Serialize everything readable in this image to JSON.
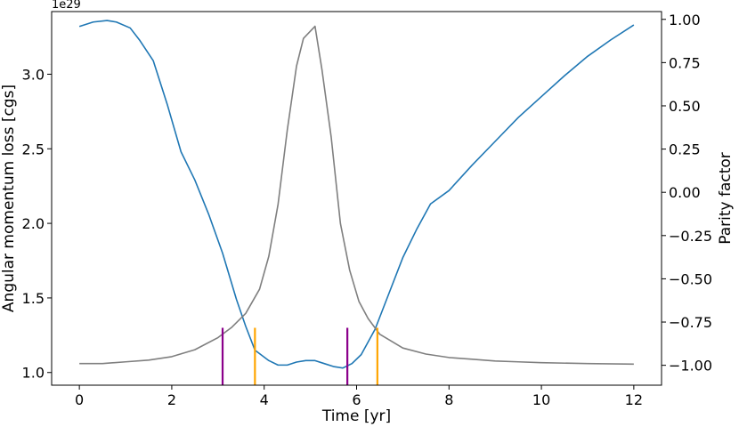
{
  "chart_data": {
    "type": "line",
    "title": "",
    "xlabel": "Time [yr]",
    "ylabel_left": "Angular momentum loss [cgs]",
    "ylabel_right": "Parity factor",
    "y_left_offset_text": "1e29",
    "xlim": [
      -0.6,
      12.6
    ],
    "ylim_left": [
      0.915,
      3.42
    ],
    "ylim_right": [
      -1.115,
      1.045
    ],
    "x_ticks": [
      0,
      2,
      4,
      6,
      8,
      10,
      12
    ],
    "x_tick_labels": [
      "0",
      "2",
      "4",
      "6",
      "8",
      "10",
      "12"
    ],
    "y_left_ticks": [
      1.0,
      1.5,
      2.0,
      2.5,
      3.0
    ],
    "y_left_tick_labels": [
      "1.0",
      "1.5",
      "2.0",
      "2.5",
      "3.0"
    ],
    "y_right_ticks": [
      -1.0,
      -0.75,
      -0.5,
      -0.25,
      0.0,
      0.25,
      0.5,
      0.75,
      1.0
    ],
    "y_right_tick_labels": [
      "−1.00",
      "−0.75",
      "−0.50",
      "−0.25",
      "0.00",
      "0.25",
      "0.50",
      "0.75",
      "1.00"
    ],
    "grid": false,
    "series": [
      {
        "axis": "left",
        "color": "#1f77b4",
        "x": [
          0,
          0.3,
          0.6,
          0.8,
          1.1,
          1.3,
          1.6,
          1.9,
          2.2,
          2.5,
          2.8,
          3.1,
          3.4,
          3.6,
          3.8,
          4.1,
          4.3,
          4.5,
          4.7,
          4.9,
          5.1,
          5.3,
          5.5,
          5.7,
          5.9,
          6.1,
          6.4,
          6.7,
          7.0,
          7.3,
          7.6,
          8.0,
          8.5,
          9.0,
          9.5,
          10.0,
          10.5,
          11.0,
          11.5,
          12.0
        ],
        "y": [
          3.32,
          3.35,
          3.36,
          3.35,
          3.31,
          3.23,
          3.09,
          2.8,
          2.48,
          2.29,
          2.06,
          1.8,
          1.49,
          1.31,
          1.15,
          1.08,
          1.05,
          1.05,
          1.07,
          1.08,
          1.08,
          1.06,
          1.04,
          1.03,
          1.06,
          1.12,
          1.29,
          1.53,
          1.77,
          1.96,
          2.13,
          2.22,
          2.39,
          2.55,
          2.71,
          2.85,
          2.99,
          3.12,
          3.23,
          3.33
        ]
      },
      {
        "axis": "right",
        "color": "#7f7f7f",
        "x": [
          0,
          0.5,
          1.0,
          1.5,
          2.0,
          2.5,
          3.0,
          3.3,
          3.6,
          3.9,
          4.1,
          4.3,
          4.5,
          4.7,
          4.85,
          5.1,
          5.25,
          5.45,
          5.65,
          5.85,
          6.05,
          6.25,
          6.5,
          7.0,
          7.5,
          8.0,
          8.5,
          9.0,
          9.5,
          10.0,
          11.0,
          12.0
        ],
        "y": [
          -0.99,
          -0.99,
          -0.98,
          -0.97,
          -0.95,
          -0.91,
          -0.84,
          -0.78,
          -0.7,
          -0.56,
          -0.37,
          -0.07,
          0.36,
          0.73,
          0.89,
          0.96,
          0.71,
          0.32,
          -0.18,
          -0.45,
          -0.63,
          -0.73,
          -0.82,
          -0.9,
          -0.935,
          -0.955,
          -0.965,
          -0.975,
          -0.98,
          -0.985,
          -0.99,
          -0.993
        ]
      }
    ],
    "vertical_markers": [
      {
        "x": 3.1,
        "ymin": 0.915,
        "ymax": 1.3,
        "color": "#8b008b"
      },
      {
        "x": 3.8,
        "ymin": 0.915,
        "ymax": 1.3,
        "color": "#ffa500"
      },
      {
        "x": 5.8,
        "ymin": 0.915,
        "ymax": 1.3,
        "color": "#8b008b"
      },
      {
        "x": 6.45,
        "ymin": 0.915,
        "ymax": 1.3,
        "color": "#ffa500"
      }
    ]
  }
}
